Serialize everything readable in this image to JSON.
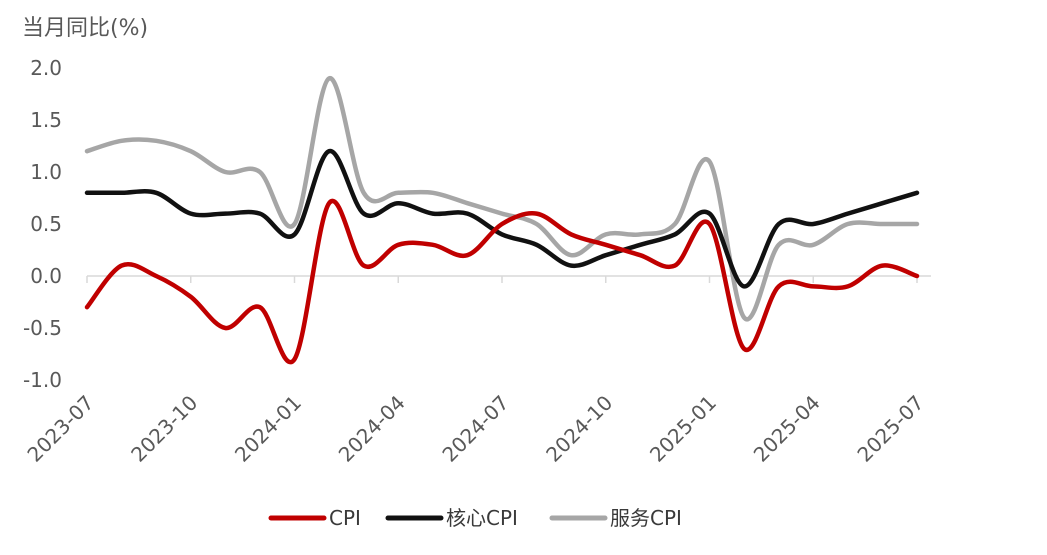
{
  "chart_data": {
    "type": "line",
    "ylabel": "当月同比(%)",
    "xlabel": "",
    "ylim": [
      -1.0,
      2.0
    ],
    "yticks": [
      "2.0",
      "1.5",
      "1.0",
      "0.5",
      "0.0",
      "-0.5",
      "-1.0"
    ],
    "yticks_values": [
      2.0,
      1.5,
      1.0,
      0.5,
      0.0,
      -0.5,
      -1.0
    ],
    "x": [
      "2023-07",
      "2023-08",
      "2023-09",
      "2023-10",
      "2023-11",
      "2023-12",
      "2024-01",
      "2024-02",
      "2024-03",
      "2024-04",
      "2024-05",
      "2024-06",
      "2024-07",
      "2024-08",
      "2024-09",
      "2024-10",
      "2024-11",
      "2024-12",
      "2025-01",
      "2025-02",
      "2025-03",
      "2025-04",
      "2025-05",
      "2025-06",
      "2025-07"
    ],
    "xtick_labels": [
      "2023-07",
      "2023-10",
      "2024-01",
      "2024-04",
      "2024-07",
      "2024-10",
      "2025-01",
      "2025-04",
      "2025-07"
    ],
    "grid": false,
    "legend_position": "bottom",
    "series": [
      {
        "name": "CPI",
        "color": "#c00000",
        "values": [
          -0.3,
          0.1,
          0.0,
          -0.2,
          -0.5,
          -0.3,
          -0.8,
          0.7,
          0.1,
          0.3,
          0.3,
          0.2,
          0.5,
          0.6,
          0.4,
          0.3,
          0.2,
          0.1,
          0.5,
          -0.7,
          -0.1,
          -0.1,
          -0.1,
          0.1,
          0.0
        ]
      },
      {
        "name": "核心CPI",
        "color": "#111111",
        "values": [
          0.8,
          0.8,
          0.8,
          0.6,
          0.6,
          0.6,
          0.4,
          1.2,
          0.6,
          0.7,
          0.6,
          0.6,
          0.4,
          0.3,
          0.1,
          0.2,
          0.3,
          0.4,
          0.6,
          -0.1,
          0.5,
          0.5,
          0.6,
          0.7,
          0.8
        ]
      },
      {
        "name": "服务CPI",
        "color": "#a6a6a6",
        "values": [
          1.2,
          1.3,
          1.3,
          1.2,
          1.0,
          1.0,
          0.5,
          1.9,
          0.8,
          0.8,
          0.8,
          0.7,
          0.6,
          0.5,
          0.2,
          0.4,
          0.4,
          0.5,
          1.1,
          -0.4,
          0.3,
          0.3,
          0.5,
          0.5,
          0.5
        ]
      }
    ]
  }
}
